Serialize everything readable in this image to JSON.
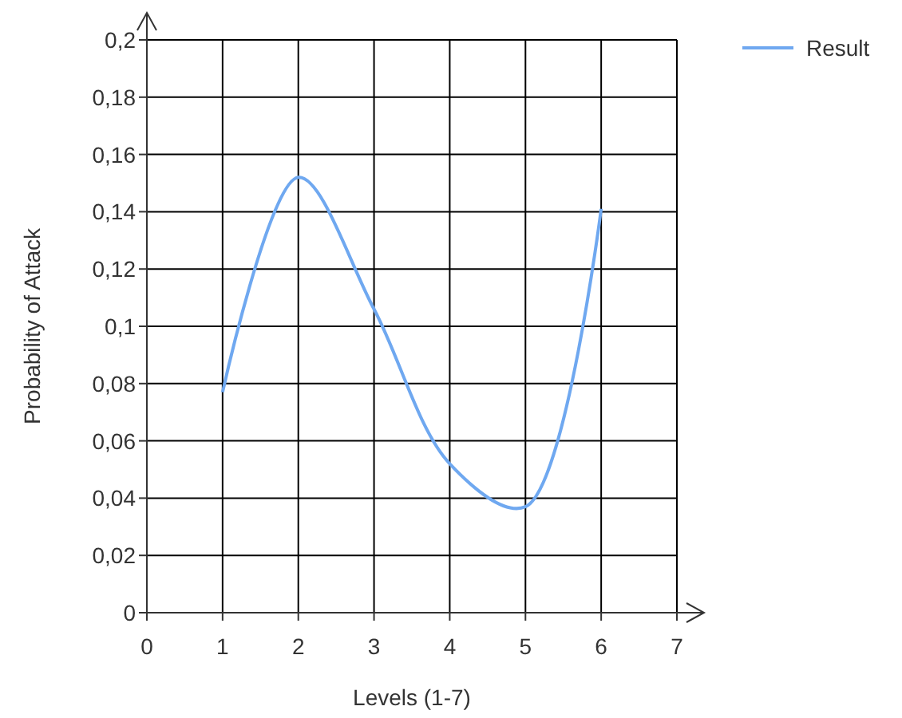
{
  "chart_data": {
    "type": "line",
    "xlabel": "Levels (1-7)",
    "ylabel": "Probability of Attack",
    "xlim": [
      0,
      7
    ],
    "xticks": [
      0,
      1,
      2,
      3,
      4,
      5,
      6,
      7
    ],
    "ylim": [
      0,
      0.2
    ],
    "yticks": [
      0,
      {
        "value": 0.02,
        "label": "0,02"
      },
      {
        "value": 0.04,
        "label": "0,04"
      },
      {
        "value": 0.06,
        "label": "0,06"
      },
      {
        "value": 0.08,
        "label": "0,08"
      },
      {
        "value": 0.1,
        "label": "0,1"
      },
      {
        "value": 0.12,
        "label": "0,12"
      },
      {
        "value": 0.14,
        "label": "0,14"
      },
      {
        "value": 0.16,
        "label": "0,16"
      },
      {
        "value": 0.18,
        "label": "0,18"
      },
      {
        "value": 0.2,
        "label": "0,2"
      }
    ],
    "grid": true,
    "legend": "top right",
    "marker": "none",
    "line_style": "solid",
    "x": [
      1,
      2,
      3,
      4,
      5,
      6
    ],
    "series": [
      {
        "name": "Result",
        "color": "#6fa8f0",
        "values": [
          0.077,
          0.152,
          0.106,
          0.052,
          0.037,
          0.141
        ]
      }
    ]
  }
}
